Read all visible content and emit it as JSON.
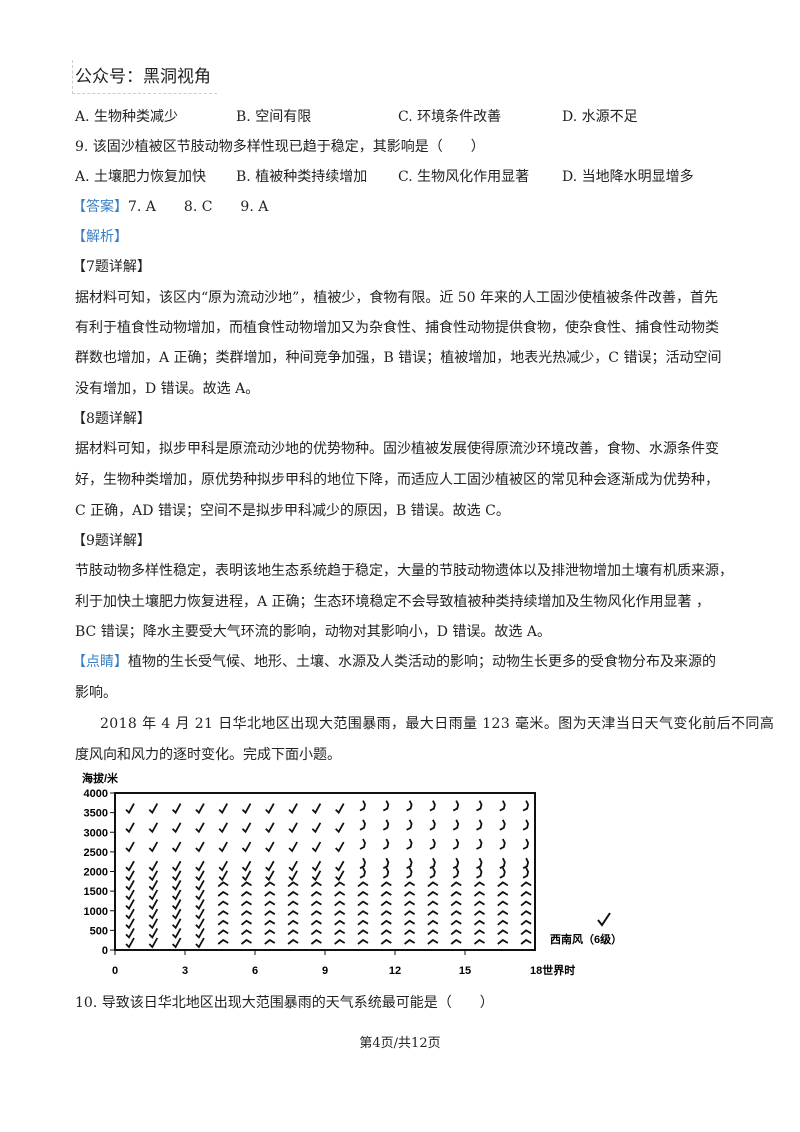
{
  "header_tag": "公众号：黑洞视角",
  "q8_options": [
    "A. 生物种类减少",
    "B. 空间有限",
    "C. 环境条件改善",
    "D. 水源不足"
  ],
  "q9": {
    "stem": "9. 该固沙植被区节肢动物多样性现已趋于稳定，其影响是（　　）",
    "options": [
      "A. 土壤肥力恢复加快",
      "B. 植被种类持续增加",
      "C. 生物风化作用显著",
      "D. 当地降水明显增多"
    ]
  },
  "answer": {
    "label": "【答案】",
    "values": "7. A　　8. C　　9. A"
  },
  "analysis_label": "【解析】",
  "sections": [
    {
      "title": "【7题详解】",
      "lines": [
        "据材料可知，该区内“原为流动沙地”，植被少，食物有限。近 50 年来的人工固沙使植被条件改善，首先",
        "有利于植食性动物增加，而植食性动物增加又为杂食性、捕食性动物提供食物，使杂食性、捕食性动物类",
        "群数也增加，A 正确；类群增加，种间竞争加强，B 错误；植被增加，地表光热减少，C 错误；活动空间",
        "没有增加，D 错误。故选 A。"
      ]
    },
    {
      "title": "【8题详解】",
      "lines": [
        "据材料可知，拟步甲科是原流动沙地的优势物种。固沙植被发展使得原流沙环境改善，食物、水源条件变",
        "好，生物种类增加，原优势种拟步甲科的地位下降，而适应人工固沙植被区的常见种会逐渐成为优势种，",
        "C 正确，AD 错误；空间不是拟步甲科减少的原因，B 错误。故选 C。"
      ]
    },
    {
      "title": "【9题详解】",
      "lines": [
        "节肢动物多样性稳定，表明该地生态系统趋于稳定，大量的节肢动物遗体以及排泄物增加土壤有机质来源，",
        "利于加快土壤肥力恢复进程，A 正确；生态环境稳定不会导致植被种类持续增加及生物风化作用显著 ，",
        "BC 错误；降水主要受大气环流的影响，动物对其影响小，D 错误。故选 A。"
      ]
    }
  ],
  "tip": {
    "label": "【点睛】",
    "lines": [
      "植物的生长受气候、地形、土壤、水源及人类活动的影响；动物生长更多的受食物分布及来源的",
      "影响。"
    ]
  },
  "material": [
    "2018 年 4 月 21 日华北地区出现大范围暴雨，最大日雨量 123 毫米。图为天津当日天气变化前后不同高",
    "度风向和风力的逐时变化。完成下面小题。"
  ],
  "figure": {
    "ylabel": "海拔/米",
    "yticks": [
      "4000",
      "3500",
      "3000",
      "2500",
      "2000",
      "1500",
      "1000",
      "500",
      "0"
    ],
    "xticks": [
      "0",
      "3",
      "6",
      "9",
      "12",
      "15"
    ],
    "xlabel_end": "18世界时",
    "legend": "西南风（6级）"
  },
  "q10": "10. 导致该日华北地区出现大范围暴雨的天气系统最可能是（　　）",
  "footer": "第4页/共12页"
}
